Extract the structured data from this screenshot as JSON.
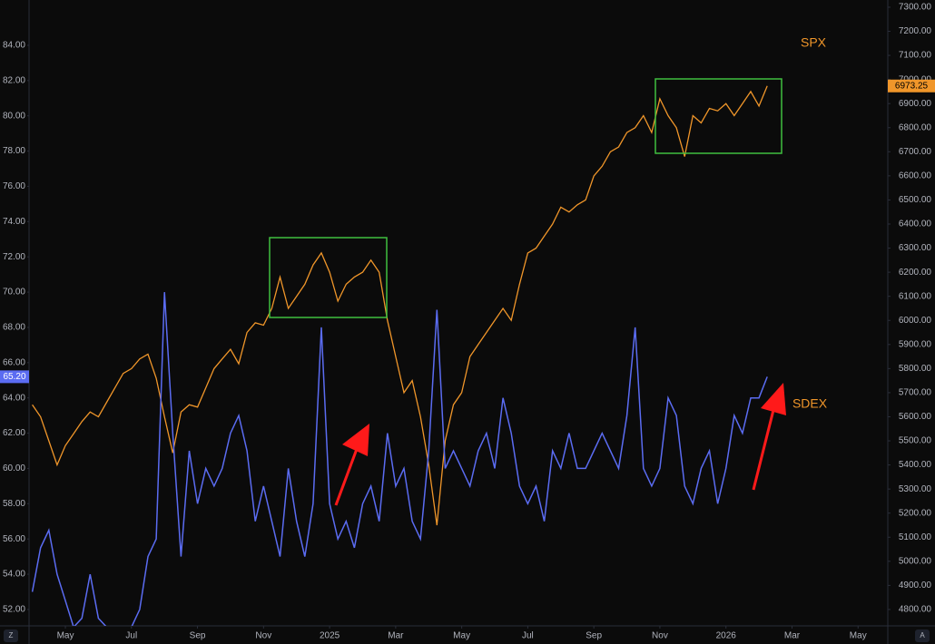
{
  "chart_data": {
    "type": "line",
    "x": [
      0,
      0.25,
      0.5,
      0.75,
      1,
      1.25,
      1.5,
      1.75,
      2,
      2.25,
      2.5,
      2.75,
      3,
      3.25,
      3.5,
      3.75,
      4,
      4.25,
      4.5,
      4.75,
      5,
      5.25,
      5.5,
      5.75,
      6,
      6.25,
      6.5,
      6.75,
      7,
      7.25,
      7.5,
      7.75,
      8,
      8.25,
      8.5,
      8.75,
      9,
      9.25,
      9.5,
      9.75,
      10,
      10.25,
      10.5,
      10.75,
      11,
      11.25,
      11.5,
      11.75,
      12,
      12.25,
      12.5,
      12.75,
      13,
      13.25,
      13.5,
      13.75,
      14,
      14.25,
      14.5,
      14.75,
      15,
      15.25,
      15.5,
      15.75,
      16,
      16.25,
      16.5,
      16.75,
      17,
      17.25,
      17.5,
      17.75,
      18,
      18.25,
      18.5,
      18.75,
      19,
      19.25,
      19.5,
      19.75,
      20,
      20.25,
      20.5,
      20.75,
      21,
      21.25,
      21.5,
      21.75,
      22,
      22.25
    ],
    "xlim": [
      -0.1,
      25.9
    ],
    "xticks": [
      {
        "value": 1,
        "label": "May"
      },
      {
        "value": 3,
        "label": "Jul"
      },
      {
        "value": 5,
        "label": "Sep"
      },
      {
        "value": 7,
        "label": "Nov"
      },
      {
        "value": 9,
        "label": "2025"
      },
      {
        "value": 11,
        "label": "Mar"
      },
      {
        "value": 13,
        "label": "May"
      },
      {
        "value": 15,
        "label": "Jul"
      },
      {
        "value": 17,
        "label": "Sep"
      },
      {
        "value": 19,
        "label": "Nov"
      },
      {
        "value": 21,
        "label": "2026"
      },
      {
        "value": 23,
        "label": "Mar"
      },
      {
        "value": 25,
        "label": "May"
      }
    ],
    "ylim": [
      51.07,
      86.57
    ],
    "yticks": [
      {
        "value": 52,
        "label": "52.00"
      },
      {
        "value": 54,
        "label": "54.00"
      },
      {
        "value": 56,
        "label": "56.00"
      },
      {
        "value": 58,
        "label": "58.00"
      },
      {
        "value": 60,
        "label": "60.00"
      },
      {
        "value": 62,
        "label": "62.00"
      },
      {
        "value": 64,
        "label": "64.00"
      },
      {
        "value": 66,
        "label": "66.00"
      },
      {
        "value": 68,
        "label": "68.00"
      },
      {
        "value": 70,
        "label": "70.00"
      },
      {
        "value": 72,
        "label": "72.00"
      },
      {
        "value": 74,
        "label": "74.00"
      },
      {
        "value": 76,
        "label": "76.00"
      },
      {
        "value": 78,
        "label": "78.00"
      },
      {
        "value": 80,
        "label": "80.00"
      },
      {
        "value": 82,
        "label": "82.00"
      },
      {
        "value": 84,
        "label": "84.00"
      }
    ],
    "y2lim": [
      4732,
      7330
    ],
    "y2ticks": [
      {
        "value": 4800,
        "label": "4800.00"
      },
      {
        "value": 4900,
        "label": "4900.00"
      },
      {
        "value": 5000,
        "label": "5000.00"
      },
      {
        "value": 5100,
        "label": "5100.00"
      },
      {
        "value": 5200,
        "label": "5200.00"
      },
      {
        "value": 5300,
        "label": "5300.00"
      },
      {
        "value": 5400,
        "label": "5400.00"
      },
      {
        "value": 5500,
        "label": "5500.00"
      },
      {
        "value": 5600,
        "label": "5600.00"
      },
      {
        "value": 5700,
        "label": "5700.00"
      },
      {
        "value": 5800,
        "label": "5800.00"
      },
      {
        "value": 5900,
        "label": "5900.00"
      },
      {
        "value": 6000,
        "label": "6000.00"
      },
      {
        "value": 6100,
        "label": "6100.00"
      },
      {
        "value": 6200,
        "label": "6200.00"
      },
      {
        "value": 6300,
        "label": "6300.00"
      },
      {
        "value": 6400,
        "label": "6400.00"
      },
      {
        "value": 6500,
        "label": "6500.00"
      },
      {
        "value": 6600,
        "label": "6600.00"
      },
      {
        "value": 6700,
        "label": "6700.00"
      },
      {
        "value": 6800,
        "label": "6800.00"
      },
      {
        "value": 6900,
        "label": "6900.00"
      },
      {
        "value": 7000,
        "label": "7000.00"
      },
      {
        "value": 7100,
        "label": "7100.00"
      },
      {
        "value": 7200,
        "label": "7200.00"
      },
      {
        "value": 7300,
        "label": "7300.00"
      }
    ],
    "grid": false,
    "series": [
      {
        "name": "SPX",
        "color": "#f0962a",
        "axis": "y2",
        "last_value_label": "6973.25",
        "values": [
          5650,
          5600,
          5500,
          5400,
          5480,
          5530,
          5580,
          5620,
          5600,
          5660,
          5720,
          5780,
          5800,
          5840,
          5860,
          5760,
          5600,
          5450,
          5620,
          5650,
          5640,
          5720,
          5800,
          5840,
          5880,
          5820,
          5950,
          5990,
          5980,
          6050,
          6180,
          6050,
          6100,
          6150,
          6230,
          6280,
          6200,
          6080,
          6150,
          6180,
          6200,
          6250,
          6200,
          6000,
          5850,
          5700,
          5750,
          5600,
          5400,
          5150,
          5500,
          5650,
          5700,
          5850,
          5900,
          5950,
          6000,
          6050,
          6000,
          6150,
          6280,
          6300,
          6350,
          6400,
          6470,
          6450,
          6480,
          6500,
          6600,
          6640,
          6700,
          6720,
          6780,
          6800,
          6850,
          6780,
          6920,
          6850,
          6800,
          6680,
          6850,
          6820,
          6880,
          6870,
          6900,
          6850,
          6900,
          6950,
          6890,
          6973.25
        ]
      },
      {
        "name": "SDEX",
        "color": "#5b6cf2",
        "axis": "y",
        "last_value_label": "65.20",
        "values": [
          53,
          55.5,
          56.5,
          54,
          52.5,
          51,
          51.5,
          54,
          51.5,
          51,
          51,
          51,
          51,
          52,
          55,
          56,
          70,
          62,
          55,
          61,
          58,
          60,
          59,
          60,
          62,
          63,
          61,
          57,
          59,
          57,
          55,
          60,
          57,
          55,
          58,
          68,
          58,
          56,
          57,
          55.5,
          58,
          59,
          57,
          62,
          59,
          60,
          57,
          56,
          61,
          69,
          60,
          61,
          60,
          59,
          61,
          62,
          60,
          64,
          62,
          59,
          58,
          59,
          57,
          61,
          60,
          62,
          60,
          60,
          61,
          62,
          61,
          60,
          63,
          68,
          60,
          59,
          60,
          64,
          63,
          59,
          58,
          60,
          61,
          58,
          60,
          63,
          62,
          64,
          64,
          65.2
        ]
      }
    ],
    "controls": [
      "Z",
      "A"
    ]
  }
}
